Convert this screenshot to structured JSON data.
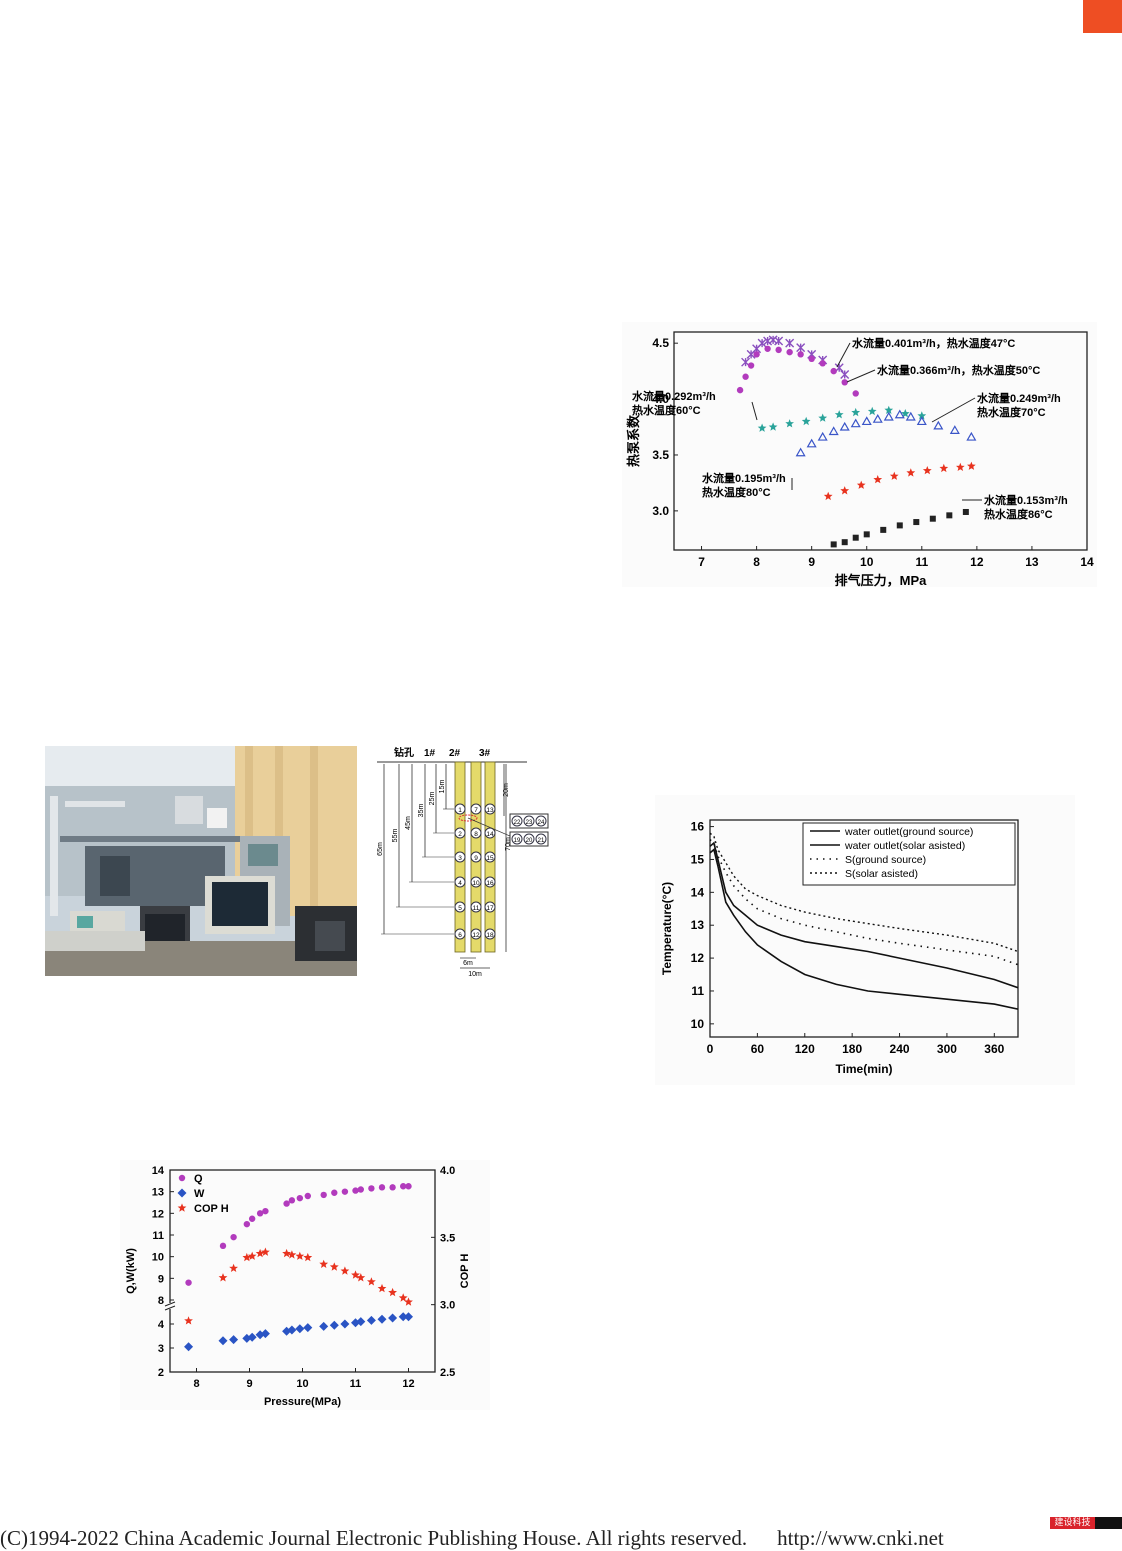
{
  "footer": {
    "copyright": "(C)1994-2022 China Academic Journal Electronic Publishing House. All rights reserved.",
    "url": "http://www.cnki.net"
  },
  "badge": {
    "label": "建设科技"
  },
  "colors": {
    "accent": "#ee4e23",
    "magenta": "#b23bbd",
    "blue": "#2a54c4",
    "red": "#e8321e",
    "teal": "#2aa39a"
  },
  "chart_data": [
    {
      "id": "cop-vs-discharge",
      "type": "scatter",
      "xlabel": "排气压力，MPa",
      "ylabel": "热泵系数",
      "xlim": [
        6.5,
        14
      ],
      "ylim": [
        2.65,
        4.6
      ],
      "xticks": [
        "7",
        "8",
        "9",
        "10",
        "11",
        "12",
        "13",
        "14"
      ],
      "yticks": [
        "4.5",
        "4.0",
        "3.5",
        "3.0"
      ],
      "series": [
        {
          "name": "水流量0.401m³/h，热水温度47°C",
          "color": "#8a4fbf",
          "marker": "x",
          "x": [
            7.8,
            7.9,
            8.0,
            8.1,
            8.2,
            8.3,
            8.4,
            8.6,
            8.8,
            9.0,
            9.2,
            9.5,
            9.6
          ],
          "y": [
            4.33,
            4.4,
            4.45,
            4.5,
            4.52,
            4.53,
            4.52,
            4.5,
            4.46,
            4.4,
            4.35,
            4.28,
            4.22
          ]
        },
        {
          "name": "水流量0.366m³/h，热水温度50°C",
          "color": "#b23bbd",
          "marker": "circle",
          "x": [
            7.7,
            7.8,
            7.9,
            8.0,
            8.2,
            8.4,
            8.6,
            8.8,
            9.0,
            9.2,
            9.4,
            9.6,
            9.8
          ],
          "y": [
            4.08,
            4.2,
            4.3,
            4.4,
            4.45,
            4.44,
            4.42,
            4.4,
            4.36,
            4.32,
            4.25,
            4.15,
            4.05
          ]
        },
        {
          "name": "水流量0.292m³/h，热水温度60°C",
          "color": "#2aa39a",
          "marker": "star",
          "x": [
            8.1,
            8.3,
            8.6,
            8.9,
            9.2,
            9.5,
            9.8,
            10.1,
            10.4,
            10.7,
            11.0
          ],
          "y": [
            3.74,
            3.75,
            3.78,
            3.8,
            3.83,
            3.86,
            3.88,
            3.89,
            3.9,
            3.87,
            3.85
          ]
        },
        {
          "name": "水流量0.249m³/h，热水温度70°C",
          "color": "#3a55c8",
          "marker": "triangle",
          "x": [
            8.8,
            9.0,
            9.2,
            9.4,
            9.6,
            9.8,
            10.0,
            10.2,
            10.4,
            10.6,
            10.8,
            11.0,
            11.3,
            11.6,
            11.9
          ],
          "y": [
            3.52,
            3.6,
            3.66,
            3.71,
            3.75,
            3.78,
            3.8,
            3.82,
            3.84,
            3.86,
            3.84,
            3.8,
            3.76,
            3.72,
            3.66
          ]
        },
        {
          "name": "水流量0.195m³/h，热水温度80°C",
          "color": "#e8321e",
          "marker": "star",
          "x": [
            9.3,
            9.6,
            9.9,
            10.2,
            10.5,
            10.8,
            11.1,
            11.4,
            11.7,
            11.9
          ],
          "y": [
            3.13,
            3.18,
            3.23,
            3.28,
            3.31,
            3.34,
            3.36,
            3.38,
            3.39,
            3.4
          ]
        },
        {
          "name": "水流量0.153m³/h，热水温度86°C",
          "color": "#222222",
          "marker": "square",
          "x": [
            9.4,
            9.6,
            9.8,
            10.0,
            10.3,
            10.6,
            10.9,
            11.2,
            11.5,
            11.8
          ],
          "y": [
            2.7,
            2.72,
            2.76,
            2.79,
            2.83,
            2.87,
            2.9,
            2.93,
            2.96,
            2.99
          ]
        }
      ],
      "annotations": [
        {
          "line1": "水流量0.401m³/h，热水温度47°C",
          "line2": ""
        },
        {
          "line1": "水流量0.366m³/h，热水温度50°C",
          "line2": ""
        },
        {
          "line1": "水流量0.292m³/h",
          "line2": "热水温度60°C"
        },
        {
          "line1": "水流量0.249m³/h",
          "line2": "热水温度70°C"
        },
        {
          "line1": "水流量0.195m³/h",
          "line2": "热水温度80°C"
        },
        {
          "line1": "水流量0.153m³/h",
          "line2": "热水温度86°C"
        }
      ]
    },
    {
      "id": "temperature-vs-time",
      "type": "line",
      "xlabel": "Time(min)",
      "ylabel": "Temperature(°C)",
      "xlim": [
        0,
        390
      ],
      "ylim": [
        9.6,
        16.2
      ],
      "xticks": [
        "0",
        "60",
        "120",
        "180",
        "240",
        "300",
        "360"
      ],
      "yticks": [
        "16",
        "15",
        "14",
        "13",
        "12",
        "11",
        "10"
      ],
      "series": [
        {
          "name": "water outlet(ground source)",
          "style": "solid",
          "x": [
            0,
            5,
            10,
            20,
            30,
            45,
            60,
            90,
            120,
            160,
            200,
            240,
            300,
            360,
            390
          ],
          "y": [
            15.2,
            15.3,
            14.8,
            13.7,
            13.3,
            12.8,
            12.4,
            11.9,
            11.5,
            11.2,
            11.0,
            10.9,
            10.75,
            10.6,
            10.45
          ]
        },
        {
          "name": "water outlet(solar asisted)",
          "style": "solid",
          "x": [
            0,
            5,
            10,
            20,
            30,
            45,
            60,
            90,
            120,
            160,
            200,
            240,
            300,
            360,
            390
          ],
          "y": [
            15.4,
            15.5,
            15.0,
            14.0,
            13.6,
            13.3,
            13.0,
            12.7,
            12.5,
            12.35,
            12.2,
            12.0,
            11.7,
            11.35,
            11.1
          ]
        },
        {
          "name": "S(ground source)",
          "style": "dotted",
          "x": [
            0,
            5,
            10,
            20,
            30,
            45,
            60,
            90,
            120,
            160,
            200,
            240,
            300,
            360,
            390
          ],
          "y": [
            15.6,
            15.5,
            15.1,
            14.6,
            14.2,
            13.8,
            13.5,
            13.2,
            13.0,
            12.8,
            12.6,
            12.45,
            12.25,
            12.05,
            11.8
          ]
        },
        {
          "name": "S(solar asisted)",
          "style": "dashed",
          "x": [
            0,
            5,
            10,
            20,
            30,
            45,
            60,
            90,
            120,
            160,
            200,
            240,
            300,
            360,
            390
          ],
          "y": [
            15.8,
            15.7,
            15.3,
            14.9,
            14.5,
            14.1,
            13.9,
            13.6,
            13.4,
            13.2,
            13.05,
            12.9,
            12.7,
            12.45,
            12.2
          ]
        }
      ]
    },
    {
      "id": "q-w-cop-vs-pressure",
      "type": "scatter",
      "xlabel": "Pressure(MPa)",
      "ylabel": "Q,W(kW)",
      "ylabel_right": "COP H",
      "xlim": [
        7.5,
        12.5
      ],
      "xticks": [
        "8",
        "9",
        "10",
        "11",
        "12"
      ],
      "yticks_left": [
        "14",
        "13",
        "12",
        "11",
        "10",
        "9",
        "8",
        "4",
        "3",
        "2"
      ],
      "yticks_right": [
        "4.0",
        "3.5",
        "3.0",
        "2.5"
      ],
      "legend": [
        "Q",
        "W",
        "COP H"
      ],
      "series": [
        {
          "name": "Q",
          "color": "#b23bbd",
          "marker": "circle",
          "x": [
            7.85,
            8.5,
            8.7,
            8.95,
            9.05,
            9.2,
            9.3,
            9.7,
            9.8,
            9.95,
            10.1,
            10.4,
            10.6,
            10.8,
            11.0,
            11.1,
            11.3,
            11.5,
            11.7,
            11.9,
            12.0
          ],
          "y": [
            8.8,
            10.5,
            10.9,
            11.5,
            11.75,
            12.0,
            12.1,
            12.45,
            12.6,
            12.7,
            12.8,
            12.85,
            12.95,
            13.0,
            13.05,
            13.1,
            13.15,
            13.2,
            13.2,
            13.25,
            13.25
          ]
        },
        {
          "name": "W",
          "color": "#2a54c4",
          "marker": "diamond",
          "x": [
            7.85,
            8.5,
            8.7,
            8.95,
            9.05,
            9.2,
            9.3,
            9.7,
            9.8,
            9.95,
            10.1,
            10.4,
            10.6,
            10.8,
            11.0,
            11.1,
            11.3,
            11.5,
            11.7,
            11.9,
            12.0
          ],
          "y": [
            3.05,
            3.3,
            3.35,
            3.4,
            3.45,
            3.55,
            3.6,
            3.7,
            3.75,
            3.8,
            3.85,
            3.9,
            3.95,
            4.0,
            4.05,
            4.1,
            4.15,
            4.2,
            4.25,
            4.3,
            4.3
          ]
        },
        {
          "name": "COP H",
          "color": "#e8321e",
          "marker": "star",
          "x": [
            7.85,
            8.5,
            8.7,
            8.95,
            9.05,
            9.2,
            9.3,
            9.7,
            9.8,
            9.95,
            10.1,
            10.4,
            10.6,
            10.8,
            11.0,
            11.1,
            11.3,
            11.5,
            11.7,
            11.9,
            12.0
          ],
          "y": [
            2.88,
            3.2,
            3.27,
            3.35,
            3.36,
            3.38,
            3.39,
            3.38,
            3.37,
            3.36,
            3.35,
            3.3,
            3.28,
            3.25,
            3.22,
            3.2,
            3.17,
            3.12,
            3.09,
            3.05,
            3.02
          ]
        }
      ]
    }
  ],
  "diagram": {
    "labels": {
      "borehole": "钻孔",
      "b1": "1#",
      "b2": "2#",
      "b3": "3#",
      "depth65": "65m",
      "depth55": "55m",
      "depth45": "45m",
      "depth35": "35m",
      "depth25": "25m",
      "depth15": "15m",
      "depth20": "20m",
      "depth70": "70m",
      "spacing6": "6m",
      "spacing10": "10m"
    },
    "sensors_col1": [
      "1",
      "2",
      "3",
      "4",
      "5",
      "6"
    ],
    "sensors_col2": [
      "7",
      "8",
      "9",
      "10",
      "11",
      "12"
    ],
    "sensors_col3": [
      "13",
      "14",
      "15",
      "16",
      "17",
      "18"
    ],
    "side_top": [
      "22",
      "23",
      "24"
    ],
    "side_bottom": [
      "19",
      "20",
      "21"
    ]
  }
}
